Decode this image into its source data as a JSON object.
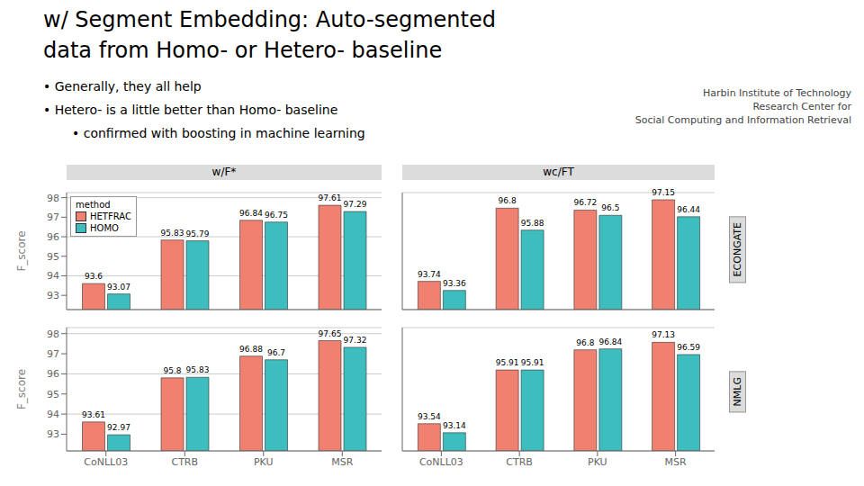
{
  "title": "w/ Segment Embedding: Auto-segmented",
  "subtitle": "data from Homo- or Hetero- baseline",
  "annotations": [
    "• Generally, they all help",
    "• Hetero- is a little better than Homo- baseline",
    "• confirmed with boosting in machine learning",
    "Harbin Institute of Technology\nResearch Center for\nSocial Computing and Information Retrieval"
  ],
  "chart_data": [
    {
      "type": "bar",
      "title": "w/F*",
      "y_label": "F_score",
      "categories": [
        "CoNLL03",
        "CTRB",
        "PKU",
        "MSR"
      ],
      "series": [
        {
          "name": "HETFRAC",
          "color": "#F08070",
          "values": [
            93.6,
            95.83,
            96.84,
            97.61
          ]
        },
        {
          "name": "HOMO",
          "color": "#3DBDBD",
          "values": [
            93.07,
            95.79,
            96.75,
            97.29
          ]
        }
      ],
      "ylim": [
        92.27,
        98.26
      ],
      "yticks": [
        93,
        94,
        95,
        96,
        97,
        98
      ],
      "grid": true,
      "data_labels": true,
      "tick_labels": "y",
      "legend": "upper left",
      "legend_title": "method"
    },
    {
      "type": "bar",
      "title": "wc/FT",
      "annotations": [
        "ECONGATE"
      ],
      "categories": [
        "CoNLL03",
        "CTRB",
        "PKU",
        "MSR"
      ],
      "series": [
        {
          "name": "HETFRAC",
          "color": "#F08070",
          "values": [
            93.74,
            96.8,
            96.72,
            97.15
          ]
        },
        {
          "name": "HOMO",
          "color": "#3DBDBD",
          "values": [
            93.36,
            95.88,
            96.5,
            96.44
          ]
        }
      ],
      "ylim": [
        92.56,
        97.45
      ],
      "yticks": [
        93,
        94,
        95,
        96,
        97
      ],
      "grid": true,
      "data_labels": true,
      "tick_labels": false
    },
    {
      "type": "bar",
      "y_label": "F_score",
      "categories": [
        "CoNLL03",
        "CTRB",
        "PKU",
        "MSR"
      ],
      "series": [
        {
          "name": "HETFRAC",
          "color": "#F08070",
          "values": [
            93.61,
            95.8,
            96.88,
            97.65
          ]
        },
        {
          "name": "HOMO",
          "color": "#3DBDBD",
          "values": [
            92.97,
            95.83,
            96.7,
            97.32
          ]
        }
      ],
      "ylim": [
        92.17,
        98.3
      ],
      "yticks": [
        93,
        94,
        95,
        96,
        97,
        98
      ],
      "grid": true,
      "data_labels": true
    },
    {
      "type": "bar",
      "annotations": [
        "NMLG"
      ],
      "categories": [
        "CoNLL03",
        "CTRB",
        "PKU",
        "MSR"
      ],
      "series": [
        {
          "name": "HETFRAC",
          "color": "#F08070",
          "values": [
            93.54,
            95.91,
            96.8,
            97.13
          ]
        },
        {
          "name": "HOMO",
          "color": "#3DBDBD",
          "values": [
            93.14,
            95.91,
            96.84,
            96.59
          ]
        }
      ],
      "ylim": [
        92.34,
        97.78
      ],
      "yticks": [
        93,
        94,
        95,
        96,
        97
      ],
      "grid": true,
      "data_labels": true,
      "tick_labels": "x"
    }
  ]
}
